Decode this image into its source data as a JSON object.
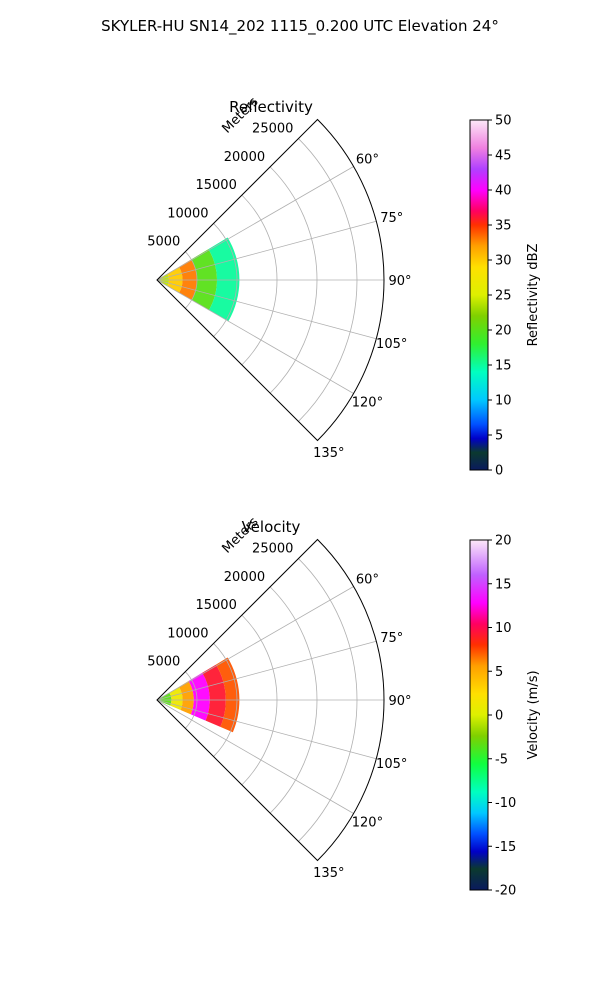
{
  "figure": {
    "title": "SKYLER-HU  SN14_202  1115_0.200 UTC Elevation 24°"
  },
  "chart_data": [
    {
      "type": "polar-sector",
      "title": "Reflectivity",
      "range_axis_label": "Meters",
      "range_ticks": [
        5000,
        10000,
        15000,
        20000,
        25000
      ],
      "range_tick_labels": [
        "5000",
        "10000",
        "15000",
        "20000",
        "25000"
      ],
      "azimuth_range": [
        45,
        135
      ],
      "azimuth_ticks": [
        60,
        75,
        90,
        105,
        120,
        135
      ],
      "azimuth_tick_labels": [
        "60°",
        "75°",
        "90°",
        "105°",
        "120°",
        "135°"
      ],
      "grid": true,
      "colorbar": {
        "label": "Reflectivity dBZ",
        "range": [
          0,
          50
        ],
        "ticks": [
          0,
          5,
          10,
          15,
          20,
          25,
          30,
          35,
          40,
          45,
          50
        ],
        "tick_labels": [
          "0",
          "5",
          "10",
          "15",
          "20",
          "25",
          "30",
          "35",
          "40",
          "45",
          "50"
        ]
      },
      "data_extent": {
        "azimuth": [
          59,
          120
        ],
        "range_m": [
          0,
          10300
        ],
        "bands": [
          {
            "range_m": [
              0,
              1500
            ],
            "value": 24
          },
          {
            "range_m": [
              1500,
              3200
            ],
            "value": 30
          },
          {
            "range_m": [
              3200,
              5000
            ],
            "value": 33
          },
          {
            "range_m": [
              5000,
              7500
            ],
            "value": 20
          },
          {
            "range_m": [
              7500,
              10300
            ],
            "value": 15
          }
        ]
      }
    },
    {
      "type": "polar-sector",
      "title": "Velocity",
      "range_axis_label": "Meters",
      "range_ticks": [
        5000,
        10000,
        15000,
        20000,
        25000
      ],
      "range_tick_labels": [
        "5000",
        "10000",
        "15000",
        "20000",
        "25000"
      ],
      "azimuth_range": [
        45,
        135
      ],
      "azimuth_ticks": [
        60,
        75,
        90,
        105,
        120,
        135
      ],
      "azimuth_tick_labels": [
        "60°",
        "75°",
        "90°",
        "105°",
        "120°",
        "135°"
      ],
      "grid": true,
      "colorbar": {
        "label": "Velocity (m/s)",
        "range": [
          -20,
          20
        ],
        "ticks": [
          -20,
          -15,
          -10,
          -5,
          0,
          5,
          10,
          15,
          20
        ],
        "tick_labels": [
          "-20",
          "-15",
          "-10",
          "-5",
          "0",
          "5",
          "10",
          "15",
          "20"
        ]
      },
      "data_extent": {
        "azimuth": [
          59,
          113
        ],
        "range_m": [
          0,
          10300
        ],
        "bands": [
          {
            "range_m": [
              0,
              1800
            ],
            "value": -4
          },
          {
            "range_m": [
              1800,
              3200
            ],
            "value": 1
          },
          {
            "range_m": [
              3200,
              4600
            ],
            "value": 5
          },
          {
            "range_m": [
              4600,
              6600
            ],
            "value": 13
          },
          {
            "range_m": [
              6600,
              8600
            ],
            "value": 9
          },
          {
            "range_m": [
              8600,
              10300
            ],
            "value": 7
          }
        ]
      }
    }
  ]
}
